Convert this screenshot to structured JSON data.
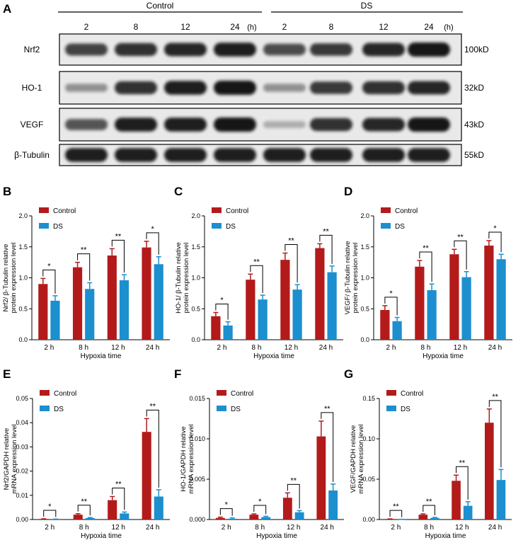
{
  "colors": {
    "control": "#B31B1B",
    "ds": "#1C8FCF",
    "blot_bg": "#E9E9E9",
    "band": "#141414"
  },
  "blot": {
    "panel_letter": "A",
    "group_labels": [
      "Control",
      "DS"
    ],
    "timepoints": [
      "2",
      "8",
      "12",
      "24",
      "(h)",
      "2",
      "8",
      "12",
      "24",
      "(h)"
    ],
    "rows": [
      {
        "protein": "Nrf2",
        "size": "100kD",
        "intensity": [
          0.75,
          0.85,
          0.9,
          0.95,
          0.7,
          0.8,
          0.9,
          1.0
        ]
      },
      {
        "protein": "HO-1",
        "size": "32kD",
        "intensity": [
          0.3,
          0.85,
          0.95,
          1.0,
          0.3,
          0.8,
          0.85,
          0.9
        ]
      },
      {
        "protein": "VEGF",
        "size": "43kD",
        "intensity": [
          0.65,
          0.95,
          0.95,
          1.0,
          0.15,
          0.85,
          0.9,
          1.0
        ]
      },
      {
        "protein": "β-Tubulin",
        "size": "55kD",
        "intensity": [
          0.95,
          0.95,
          0.95,
          0.95,
          0.95,
          0.95,
          0.95,
          0.95
        ]
      }
    ]
  },
  "chart_data": [
    {
      "panel": "B",
      "type": "bar",
      "categories": [
        "2 h",
        "8 h",
        "12 h",
        "24 h"
      ],
      "series": [
        {
          "name": "Control",
          "values": [
            0.9,
            1.17,
            1.36,
            1.49
          ],
          "errors": [
            0.09,
            0.08,
            0.11,
            0.1
          ]
        },
        {
          "name": "DS",
          "values": [
            0.63,
            0.82,
            0.96,
            1.22
          ],
          "errors": [
            0.08,
            0.1,
            0.09,
            0.12
          ]
        }
      ],
      "significance": [
        "*",
        "**",
        "**",
        "*"
      ],
      "xlabel": "Hypoxia time",
      "ylabel": [
        "Nrf2/ β-Tubulin relative",
        "protein expression level"
      ],
      "ylim": [
        0,
        2.0
      ],
      "yticks": [
        0.0,
        0.5,
        1.0,
        1.5,
        2.0
      ],
      "ytick_labels": [
        "0.0",
        "0.5",
        "1.0",
        "1.5",
        "2.0"
      ],
      "legend": "top-left"
    },
    {
      "panel": "C",
      "type": "bar",
      "categories": [
        "2 h",
        "8 h",
        "12 h",
        "24 h"
      ],
      "series": [
        {
          "name": "Control",
          "values": [
            0.38,
            0.97,
            1.29,
            1.48
          ],
          "errors": [
            0.06,
            0.09,
            0.11,
            0.07
          ]
        },
        {
          "name": "DS",
          "values": [
            0.23,
            0.65,
            0.81,
            1.09
          ],
          "errors": [
            0.06,
            0.07,
            0.08,
            0.1
          ]
        }
      ],
      "significance": [
        "*",
        "**",
        "**",
        "**"
      ],
      "xlabel": "Hypoxia time",
      "ylabel": [
        "HO-1/ β-Tubulin relative",
        "protein expression level"
      ],
      "ylim": [
        0,
        2.0
      ],
      "yticks": [
        0.0,
        0.5,
        1.0,
        1.5,
        2.0
      ],
      "ytick_labels": [
        "0.0",
        "0.5",
        "1.0",
        "1.5",
        "2.0"
      ],
      "legend": "top-left"
    },
    {
      "panel": "D",
      "type": "bar",
      "categories": [
        "2 h",
        "8 h",
        "12 h",
        "24 h"
      ],
      "series": [
        {
          "name": "Control",
          "values": [
            0.48,
            1.18,
            1.38,
            1.52
          ],
          "errors": [
            0.07,
            0.1,
            0.08,
            0.08
          ]
        },
        {
          "name": "DS",
          "values": [
            0.3,
            0.8,
            1.01,
            1.3
          ],
          "errors": [
            0.06,
            0.1,
            0.09,
            0.08
          ]
        }
      ],
      "significance": [
        "*",
        "**",
        "**",
        "*"
      ],
      "xlabel": "Hypoxia time",
      "ylabel": [
        "VEGF/ β-Tubulin relative",
        "protein expression level"
      ],
      "ylim": [
        0,
        2.0
      ],
      "yticks": [
        0.0,
        0.5,
        1.0,
        1.5,
        2.0
      ],
      "ytick_labels": [
        "0.0",
        "0.5",
        "1.0",
        "1.5",
        "2.0"
      ],
      "legend": "top-left"
    },
    {
      "panel": "E",
      "type": "bar",
      "categories": [
        "2 h",
        "8 h",
        "12 h",
        "24 h"
      ],
      "series": [
        {
          "name": "Control",
          "values": [
            0.0002,
            0.002,
            0.008,
            0.0362
          ],
          "errors": [
            0.0001,
            0.0004,
            0.0015,
            0.0055
          ]
        },
        {
          "name": "DS",
          "values": [
            0.0001,
            0.0006,
            0.0025,
            0.0095
          ],
          "errors": [
            0.0001,
            0.0002,
            0.0006,
            0.0028
          ]
        }
      ],
      "significance": [
        "*",
        "**",
        "**",
        "**"
      ],
      "xlabel": "Hypoxia time",
      "ylabel": [
        "Nrf2/GAPDH relative",
        "mRNA expression level"
      ],
      "ylim": [
        0,
        0.05
      ],
      "yticks": [
        0,
        0.01,
        0.02,
        0.03,
        0.04,
        0.05
      ],
      "ytick_labels": [
        "0.00",
        "0.01",
        "0.02",
        "0.03",
        "0.04",
        "0.05"
      ],
      "legend": "top-left"
    },
    {
      "panel": "F",
      "type": "bar",
      "categories": [
        "2 h",
        "8 h",
        "12 h",
        "24 h"
      ],
      "series": [
        {
          "name": "Control",
          "values": [
            0.0002,
            0.0006,
            0.0027,
            0.0103
          ],
          "errors": [
            0.0001,
            0.0001,
            0.0006,
            0.0019
          ]
        },
        {
          "name": "DS",
          "values": [
            0.0001,
            0.0003,
            0.0009,
            0.0036
          ],
          "errors": [
            0.0001,
            0.0001,
            0.0002,
            0.0008
          ]
        }
      ],
      "significance": [
        "*",
        "*",
        "**",
        "**"
      ],
      "xlabel": "Hypoxia time",
      "ylabel": [
        "HO-1/GAPDH relative",
        "mRNA expression level"
      ],
      "ylim": [
        0,
        0.015
      ],
      "yticks": [
        0,
        0.005,
        0.01,
        0.015
      ],
      "ytick_labels": [
        "0.000",
        "0.005",
        "0.010",
        "0.015"
      ],
      "legend": "top-left"
    },
    {
      "panel": "G",
      "type": "bar",
      "categories": [
        "2 h",
        "8 h",
        "12 h",
        "24 h"
      ],
      "series": [
        {
          "name": "Control",
          "values": [
            0.0005,
            0.006,
            0.048,
            0.12
          ],
          "errors": [
            0.0003,
            0.001,
            0.007,
            0.017
          ]
        },
        {
          "name": "DS",
          "values": [
            0.0002,
            0.002,
            0.017,
            0.049
          ],
          "errors": [
            0.0001,
            0.0006,
            0.005,
            0.013
          ]
        }
      ],
      "significance": [
        "**",
        "**",
        "**",
        "**"
      ],
      "xlabel": "Hypoxia time",
      "ylabel": [
        "VEGF/GAPDH relative",
        "mRNA expression level"
      ],
      "ylim": [
        0,
        0.15
      ],
      "yticks": [
        0,
        0.05,
        0.1,
        0.15
      ],
      "ytick_labels": [
        "0.00",
        "0.05",
        "0.10",
        "0.15"
      ],
      "legend": "top-left"
    }
  ]
}
